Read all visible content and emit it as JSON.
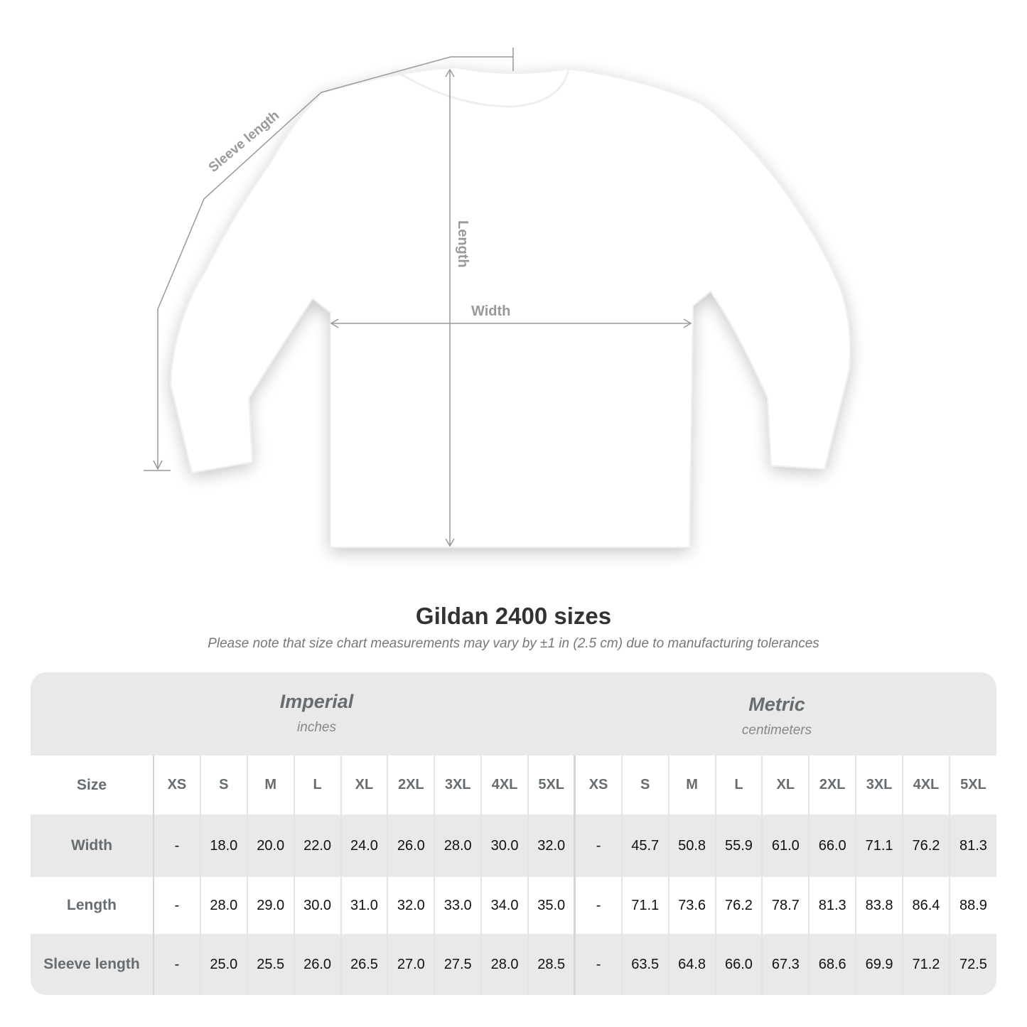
{
  "diagram": {
    "labels": {
      "sleeve": "Sleeve length",
      "length": "Length",
      "width": "Width"
    },
    "line_color": "#999999"
  },
  "title": "Gildan 2400 sizes",
  "subtitle": "Please note that size chart measurements may vary by ±1 in (2.5 cm) due to manufacturing tolerances",
  "systems": [
    {
      "name": "Imperial",
      "unit": "inches"
    },
    {
      "name": "Metric",
      "unit": "centimeters"
    }
  ],
  "table": {
    "size_label": "Size",
    "sizes": [
      "XS",
      "S",
      "M",
      "L",
      "XL",
      "2XL",
      "3XL",
      "4XL",
      "5XL"
    ],
    "rows": [
      {
        "label": "Width",
        "imperial": [
          "-",
          "18.0",
          "20.0",
          "22.0",
          "24.0",
          "26.0",
          "28.0",
          "30.0",
          "32.0"
        ],
        "metric": [
          "-",
          "45.7",
          "50.8",
          "55.9",
          "61.0",
          "66.0",
          "71.1",
          "76.2",
          "81.3"
        ]
      },
      {
        "label": "Length",
        "imperial": [
          "-",
          "28.0",
          "29.0",
          "30.0",
          "31.0",
          "32.0",
          "33.0",
          "34.0",
          "35.0"
        ],
        "metric": [
          "-",
          "71.1",
          "73.6",
          "76.2",
          "78.7",
          "81.3",
          "83.8",
          "86.4",
          "88.9"
        ]
      },
      {
        "label": "Sleeve length",
        "imperial": [
          "-",
          "25.0",
          "25.5",
          "26.0",
          "26.5",
          "27.0",
          "27.5",
          "28.0",
          "28.5"
        ],
        "metric": [
          "-",
          "63.5",
          "64.8",
          "66.0",
          "67.3",
          "68.6",
          "69.9",
          "71.2",
          "72.5"
        ]
      }
    ]
  }
}
